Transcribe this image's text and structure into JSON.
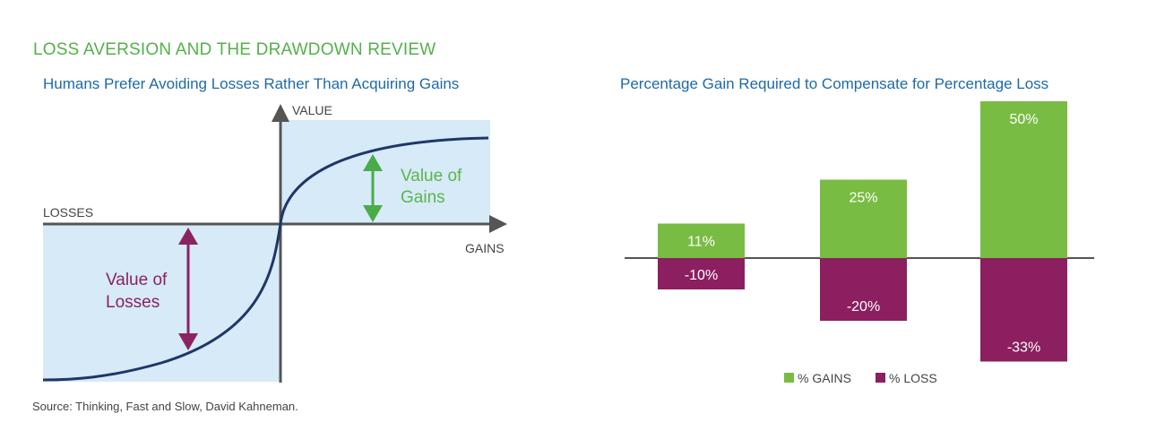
{
  "header": {
    "title": "LOSS AVERSION AND THE DRAWDOWN REVIEW"
  },
  "source": "Source: Thinking, Fast and Slow, David Kahneman.",
  "colors": {
    "gain": "#79bc43",
    "loss": "#8b1f5f",
    "panel": "#d6eaf8",
    "curve": "#1f3668",
    "axis": "#555555",
    "gain_arrow": "#4aac47",
    "loss_arrow": "#8b2262"
  },
  "chart_data": [
    {
      "type": "line",
      "title": "Humans Prefer Avoiding Losses Rather Than Acquiring Gains",
      "y_axis_label": "VALUE",
      "x_axis_negative_label": "LOSSES",
      "x_axis_positive_label": "GAINS",
      "annotations": {
        "gains": [
          "Value of",
          "Gains"
        ],
        "losses": [
          "Value of",
          "Losses"
        ]
      },
      "grid": false
    },
    {
      "type": "bar",
      "title": "Percentage Gain Required to Compensate for Percentage Loss",
      "categories": [
        "",
        "",
        ""
      ],
      "series": [
        {
          "name": "% GAINS",
          "values": [
            11,
            25,
            50
          ],
          "labels": [
            "11%",
            "25%",
            "50%"
          ]
        },
        {
          "name": "% LOSS",
          "values": [
            -10,
            -20,
            -33
          ],
          "labels": [
            "-10%",
            "-20%",
            "-33%"
          ]
        }
      ],
      "legend": "bottom",
      "grid": false
    }
  ]
}
